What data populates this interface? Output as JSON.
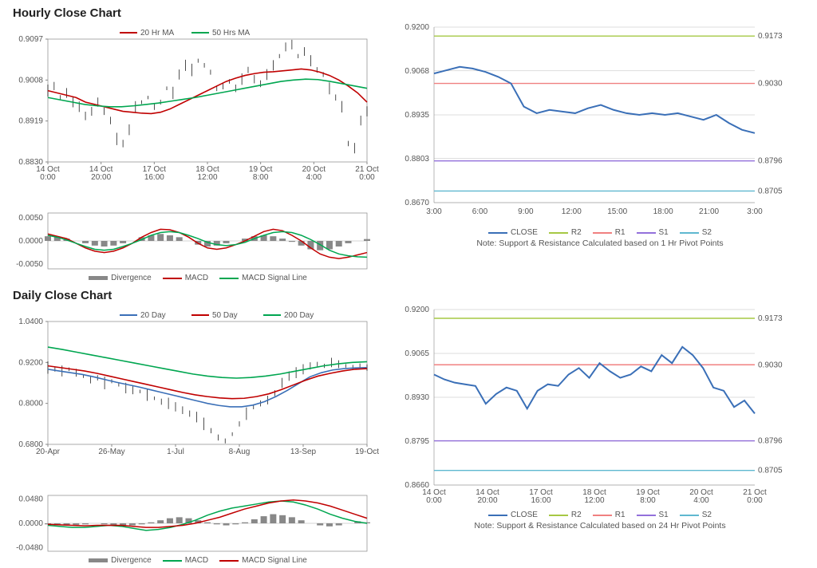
{
  "hourly": {
    "title": "Hourly Close Chart",
    "price_chart": {
      "type": "line+candle",
      "ylim": [
        0.883,
        0.9097
      ],
      "yticks": [
        0.883,
        0.8919,
        0.9008,
        0.9097
      ],
      "xticks": [
        "14 Oct 0:00",
        "14 Oct 20:00",
        "17 Oct 16:00",
        "18 Oct 12:00",
        "19 Oct 8:00",
        "20 Oct 4:00",
        "21 Oct 0:00"
      ],
      "legend": [
        {
          "label": "20 Hr MA",
          "color": "#c00000"
        },
        {
          "label": "50 Hrs MA",
          "color": "#00a650"
        }
      ],
      "series": {
        "price_jitter": {
          "color": "#000000",
          "stroke_width": 0.7,
          "values": [
            0.8985,
            0.8995,
            0.897,
            0.898,
            0.896,
            0.895,
            0.893,
            0.894,
            0.896,
            0.894,
            0.892,
            0.888,
            0.887,
            0.89,
            0.895,
            0.896,
            0.897,
            0.895,
            0.896,
            0.899,
            0.898,
            0.902,
            0.904,
            0.903,
            0.905,
            0.904,
            0.9025,
            0.899,
            0.8995,
            0.9005,
            0.899,
            0.901,
            0.903,
            0.901,
            0.9,
            0.902,
            0.904,
            0.906,
            0.908,
            0.9085,
            0.906,
            0.907,
            0.905,
            0.903,
            0.902,
            0.899,
            0.897,
            0.895,
            0.887,
            0.886,
            0.892,
            0.894
          ]
        },
        "ma20": {
          "color": "#c00000",
          "stroke_width": 1.6,
          "values": [
            0.8985,
            0.898,
            0.8975,
            0.897,
            0.896,
            0.8955,
            0.895,
            0.8945,
            0.894,
            0.8938,
            0.8936,
            0.8935,
            0.8938,
            0.8945,
            0.8955,
            0.8965,
            0.8975,
            0.8985,
            0.8995,
            0.9005,
            0.9012,
            0.9018,
            0.9022,
            0.9025,
            0.9026,
            0.9028,
            0.903,
            0.9032,
            0.903,
            0.9025,
            0.9018,
            0.9008,
            0.8995,
            0.898,
            0.896
          ]
        },
        "ma50": {
          "color": "#00a650",
          "stroke_width": 1.6,
          "values": [
            0.897,
            0.8965,
            0.896,
            0.8955,
            0.8952,
            0.895,
            0.895,
            0.8952,
            0.8955,
            0.8958,
            0.8962,
            0.8966,
            0.897,
            0.8975,
            0.898,
            0.8985,
            0.899,
            0.8995,
            0.9,
            0.9005,
            0.9008,
            0.901,
            0.9009,
            0.9005,
            0.9,
            0.8995,
            0.899
          ]
        }
      }
    },
    "macd_chart": {
      "type": "macd",
      "ylim": [
        -0.006,
        0.006
      ],
      "yticks": [
        -0.005,
        0.0,
        0.005
      ],
      "legend": [
        {
          "label": "Divergence",
          "color": "#888888",
          "thick": true
        },
        {
          "label": "MACD",
          "color": "#c00000"
        },
        {
          "label": "MACD Signal Line",
          "color": "#00a650"
        }
      ],
      "divergence": [
        0.001,
        0.0008,
        0.0005,
        0.0,
        -0.0005,
        -0.001,
        -0.0012,
        -0.001,
        -0.0005,
        0.0,
        0.0008,
        0.0012,
        0.0015,
        0.0012,
        0.0008,
        0.0,
        -0.0008,
        -0.0012,
        -0.001,
        -0.0005,
        0.0,
        0.0005,
        0.001,
        0.0012,
        0.001,
        0.0005,
        -0.0002,
        -0.001,
        -0.0018,
        -0.002,
        -0.0018,
        -0.0012,
        -0.0005,
        0.0,
        0.0004
      ],
      "macd": {
        "color": "#c00000",
        "values": [
          0.0015,
          0.001,
          0.0005,
          -0.0005,
          -0.0015,
          -0.0022,
          -0.0025,
          -0.0022,
          -0.0015,
          -0.0005,
          0.0008,
          0.0018,
          0.0025,
          0.0024,
          0.0018,
          0.0008,
          -0.0005,
          -0.0015,
          -0.0018,
          -0.0015,
          -0.0008,
          0.0,
          0.001,
          0.002,
          0.0025,
          0.0022,
          0.0012,
          0.0,
          -0.0015,
          -0.0028,
          -0.0035,
          -0.0038,
          -0.0035,
          -0.003,
          -0.0025
        ]
      },
      "signal": {
        "color": "#00a650",
        "values": [
          0.0012,
          0.0008,
          0.0002,
          -0.0005,
          -0.0012,
          -0.0018,
          -0.002,
          -0.0018,
          -0.0012,
          -0.0005,
          0.0003,
          0.0012,
          0.0018,
          0.002,
          0.0018,
          0.0012,
          0.0005,
          -0.0003,
          -0.0008,
          -0.001,
          -0.0008,
          -0.0003,
          0.0005,
          0.0012,
          0.0018,
          0.002,
          0.0018,
          0.0012,
          0.0003,
          -0.0008,
          -0.002,
          -0.0028,
          -0.0032,
          -0.0034,
          -0.0035
        ]
      }
    },
    "sr_chart": {
      "type": "line+levels",
      "ylim": [
        0.867,
        0.92
      ],
      "yticks": [
        0.867,
        0.8803,
        0.8935,
        0.9068,
        0.92
      ],
      "xticks": [
        "3:00",
        "6:00",
        "9:00",
        "12:00",
        "15:00",
        "18:00",
        "21:00",
        "3:00"
      ],
      "levels": [
        {
          "label": "R2",
          "value": 0.9173,
          "color": "#a6c844"
        },
        {
          "label": "R1",
          "value": 0.903,
          "color": "#f08080"
        },
        {
          "label": "S1",
          "value": 0.8796,
          "color": "#9370db"
        },
        {
          "label": "S2",
          "value": 0.8705,
          "color": "#5fb8d0"
        }
      ],
      "close": {
        "color": "#3a6fb7",
        "stroke_width": 2,
        "values": [
          0.906,
          0.907,
          0.908,
          0.9075,
          0.9065,
          0.905,
          0.903,
          0.896,
          0.894,
          0.895,
          0.8945,
          0.894,
          0.8955,
          0.8965,
          0.895,
          0.894,
          0.8935,
          0.894,
          0.8935,
          0.894,
          0.893,
          0.892,
          0.8935,
          0.891,
          0.889,
          0.888
        ]
      },
      "legend": [
        {
          "label": "CLOSE",
          "color": "#3a6fb7"
        },
        {
          "label": "R2",
          "color": "#a6c844"
        },
        {
          "label": "R1",
          "color": "#f08080"
        },
        {
          "label": "S1",
          "color": "#9370db"
        },
        {
          "label": "S2",
          "color": "#5fb8d0"
        }
      ],
      "note": "Note: Support & Resistance Calculated based on 1 Hr Pivot Points"
    }
  },
  "daily": {
    "title": "Daily Close Chart",
    "price_chart": {
      "type": "line+candle",
      "ylim": [
        0.68,
        1.04
      ],
      "yticks": [
        0.68,
        0.8,
        0.92,
        1.04
      ],
      "xticks": [
        "20-Apr",
        "26-May",
        "1-Jul",
        "8-Aug",
        "13-Sep",
        "19-Oct"
      ],
      "legend": [
        {
          "label": "20 Day",
          "color": "#3a6fb7"
        },
        {
          "label": "50 Day",
          "color": "#c00000"
        },
        {
          "label": "200 Day",
          "color": "#00a650"
        }
      ],
      "series": {
        "price_jitter": {
          "color": "#000000",
          "stroke_width": 0.7,
          "values": [
            0.905,
            0.9,
            0.895,
            0.9,
            0.89,
            0.88,
            0.87,
            0.875,
            0.86,
            0.865,
            0.855,
            0.845,
            0.84,
            0.835,
            0.825,
            0.815,
            0.805,
            0.8,
            0.79,
            0.78,
            0.77,
            0.76,
            0.74,
            0.72,
            0.7,
            0.69,
            0.71,
            0.74,
            0.77,
            0.79,
            0.8,
            0.81,
            0.83,
            0.86,
            0.88,
            0.89,
            0.9,
            0.91,
            0.915,
            0.91,
            0.92,
            0.915,
            0.91,
            0.905,
            0.91,
            0.905
          ]
        },
        "ma20": {
          "color": "#3a6fb7",
          "stroke_width": 1.6,
          "values": [
            0.9,
            0.895,
            0.89,
            0.885,
            0.878,
            0.87,
            0.862,
            0.855,
            0.848,
            0.84,
            0.832,
            0.824,
            0.816,
            0.808,
            0.8,
            0.794,
            0.79,
            0.79,
            0.795,
            0.805,
            0.82,
            0.838,
            0.858,
            0.878,
            0.89,
            0.898,
            0.902,
            0.904,
            0.905
          ]
        },
        "ma50": {
          "color": "#c00000",
          "stroke_width": 1.6,
          "values": [
            0.91,
            0.905,
            0.9,
            0.895,
            0.888,
            0.88,
            0.872,
            0.864,
            0.856,
            0.848,
            0.84,
            0.832,
            0.825,
            0.82,
            0.816,
            0.814,
            0.815,
            0.82,
            0.828,
            0.84,
            0.854,
            0.868,
            0.88,
            0.888,
            0.895,
            0.9,
            0.902
          ]
        },
        "ma200": {
          "color": "#00a650",
          "stroke_width": 1.6,
          "values": [
            0.965,
            0.958,
            0.95,
            0.942,
            0.934,
            0.926,
            0.918,
            0.91,
            0.902,
            0.894,
            0.886,
            0.88,
            0.876,
            0.874,
            0.876,
            0.88,
            0.886,
            0.894,
            0.902,
            0.91,
            0.916,
            0.92,
            0.922
          ]
        }
      }
    },
    "macd_chart": {
      "type": "macd",
      "ylim": [
        -0.055,
        0.055
      ],
      "yticks": [
        -0.048,
        0.0,
        0.048
      ],
      "legend": [
        {
          "label": "Divergence",
          "color": "#888888",
          "thick": true
        },
        {
          "label": "MACD",
          "color": "#00a650"
        },
        {
          "label": "MACD Signal Line",
          "color": "#c00000"
        }
      ],
      "divergence": [
        -0.002,
        -0.003,
        -0.004,
        -0.003,
        -0.002,
        0.0,
        -0.002,
        -0.004,
        -0.006,
        -0.004,
        -0.002,
        0.002,
        0.006,
        0.01,
        0.012,
        0.01,
        0.006,
        0.002,
        -0.002,
        -0.004,
        -0.002,
        0.002,
        0.008,
        0.014,
        0.018,
        0.016,
        0.012,
        0.006,
        0.0,
        -0.004,
        -0.006,
        -0.004,
        0.0,
        0.004,
        0.002
      ],
      "macd": {
        "color": "#00a650",
        "values": [
          -0.004,
          -0.006,
          -0.008,
          -0.008,
          -0.006,
          -0.004,
          -0.006,
          -0.01,
          -0.014,
          -0.012,
          -0.008,
          -0.002,
          0.006,
          0.016,
          0.024,
          0.03,
          0.034,
          0.038,
          0.042,
          0.044,
          0.042,
          0.036,
          0.028,
          0.018,
          0.01,
          0.004,
          0.0
        ]
      },
      "signal": {
        "color": "#c00000",
        "values": [
          -0.002,
          -0.003,
          -0.004,
          -0.005,
          -0.004,
          -0.004,
          -0.004,
          -0.006,
          -0.008,
          -0.008,
          -0.006,
          -0.004,
          0.0,
          0.006,
          0.012,
          0.02,
          0.028,
          0.034,
          0.04,
          0.044,
          0.046,
          0.044,
          0.04,
          0.034,
          0.026,
          0.018,
          0.01
        ]
      }
    },
    "sr_chart": {
      "type": "line+levels",
      "ylim": [
        0.866,
        0.92
      ],
      "yticks": [
        0.866,
        0.8795,
        0.893,
        0.9065,
        0.92
      ],
      "xticks": [
        "14 Oct 0:00",
        "14 Oct 20:00",
        "17 Oct 16:00",
        "18 Oct 12:00",
        "19 Oct 8:00",
        "20 Oct 4:00",
        "21 Oct 0:00"
      ],
      "levels": [
        {
          "label": "R2",
          "value": 0.9173,
          "color": "#a6c844"
        },
        {
          "label": "R1",
          "value": 0.903,
          "color": "#f08080"
        },
        {
          "label": "S1",
          "value": 0.8796,
          "color": "#9370db"
        },
        {
          "label": "S2",
          "value": 0.8705,
          "color": "#5fb8d0"
        }
      ],
      "close": {
        "color": "#3a6fb7",
        "stroke_width": 2,
        "values": [
          0.9,
          0.8985,
          0.8975,
          0.897,
          0.8965,
          0.891,
          0.894,
          0.896,
          0.895,
          0.8895,
          0.895,
          0.897,
          0.8965,
          0.9,
          0.902,
          0.899,
          0.9035,
          0.901,
          0.899,
          0.9,
          0.9025,
          0.901,
          0.906,
          0.9035,
          0.9085,
          0.906,
          0.902,
          0.896,
          0.895,
          0.89,
          0.892,
          0.888
        ]
      },
      "legend": [
        {
          "label": "CLOSE",
          "color": "#3a6fb7"
        },
        {
          "label": "R2",
          "color": "#a6c844"
        },
        {
          "label": "R1",
          "color": "#f08080"
        },
        {
          "label": "S1",
          "color": "#9370db"
        },
        {
          "label": "S2",
          "color": "#5fb8d0"
        }
      ],
      "note": "Note: Support & Resistance Calculated based on 24 Hr Pivot Points"
    }
  },
  "colors": {
    "axis": "#555555",
    "border": "#888888",
    "grid": "#dddddd",
    "bg": "#ffffff"
  }
}
